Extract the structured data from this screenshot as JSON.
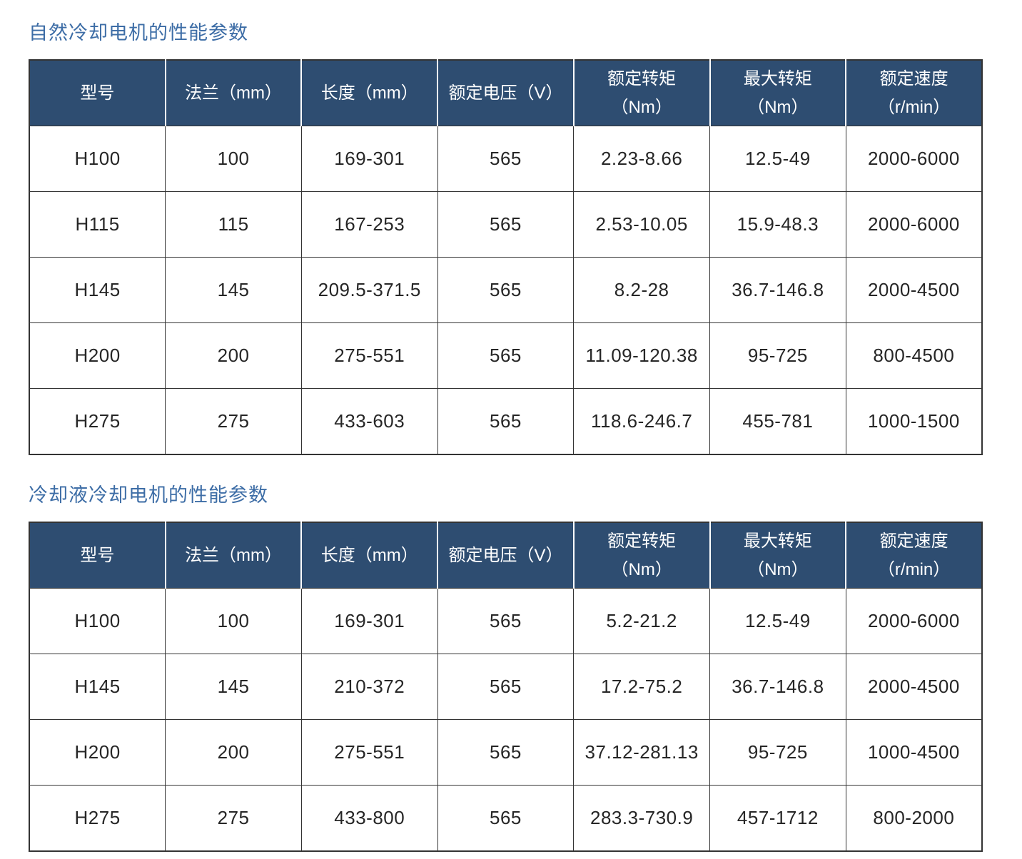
{
  "colors": {
    "title_text": "#3d6da6",
    "header_background": "#2e4d71",
    "header_text": "#ffffff",
    "body_text": "#262626",
    "grid_border": "#333333"
  },
  "tables": [
    {
      "id": "natural-cooling",
      "title": "自然冷却电机的性能参数",
      "columns": [
        {
          "id": "model",
          "lines": [
            "型号"
          ]
        },
        {
          "id": "flange-mm",
          "lines": [
            "法兰（mm）"
          ]
        },
        {
          "id": "length-mm",
          "lines": [
            "长度（mm）"
          ]
        },
        {
          "id": "rated-voltage-v",
          "lines": [
            "额定电压（V）"
          ]
        },
        {
          "id": "rated-torque-nm",
          "lines": [
            "额定转矩",
            "（Nm）"
          ]
        },
        {
          "id": "max-torque-nm",
          "lines": [
            "最大转矩",
            "（Nm）"
          ]
        },
        {
          "id": "rated-speed-rpm",
          "lines": [
            "额定速度",
            "（r/min）"
          ]
        }
      ],
      "rows": [
        [
          "H100",
          "100",
          "169-301",
          "565",
          "2.23-8.66",
          "12.5-49",
          "2000-6000"
        ],
        [
          "H115",
          "115",
          "167-253",
          "565",
          "2.53-10.05",
          "15.9-48.3",
          "2000-6000"
        ],
        [
          "H145",
          "145",
          "209.5-371.5",
          "565",
          "8.2-28",
          "36.7-146.8",
          "2000-4500"
        ],
        [
          "H200",
          "200",
          "275-551",
          "565",
          "11.09-120.38",
          "95-725",
          "800-4500"
        ],
        [
          "H275",
          "275",
          "433-603",
          "565",
          "118.6-246.7",
          "455-781",
          "1000-1500"
        ]
      ]
    },
    {
      "id": "liquid-cooling",
      "title": "冷却液冷却电机的性能参数",
      "columns": [
        {
          "id": "model",
          "lines": [
            "型号"
          ]
        },
        {
          "id": "flange-mm",
          "lines": [
            "法兰（mm）"
          ]
        },
        {
          "id": "length-mm",
          "lines": [
            "长度（mm）"
          ]
        },
        {
          "id": "rated-voltage-v",
          "lines": [
            "额定电压（V）"
          ]
        },
        {
          "id": "rated-torque-nm",
          "lines": [
            "额定转矩",
            "（Nm）"
          ]
        },
        {
          "id": "max-torque-nm",
          "lines": [
            "最大转矩",
            "（Nm）"
          ]
        },
        {
          "id": "rated-speed-rpm",
          "lines": [
            "额定速度",
            "（r/min）"
          ]
        }
      ],
      "rows": [
        [
          "H100",
          "100",
          "169-301",
          "565",
          "5.2-21.2",
          "12.5-49",
          "2000-6000"
        ],
        [
          "H145",
          "145",
          "210-372",
          "565",
          "17.2-75.2",
          "36.7-146.8",
          "2000-4500"
        ],
        [
          "H200",
          "200",
          "275-551",
          "565",
          "37.12-281.13",
          "95-725",
          "1000-4500"
        ],
        [
          "H275",
          "275",
          "433-800",
          "565",
          "283.3-730.9",
          "457-1712",
          "800-2000"
        ]
      ]
    }
  ]
}
